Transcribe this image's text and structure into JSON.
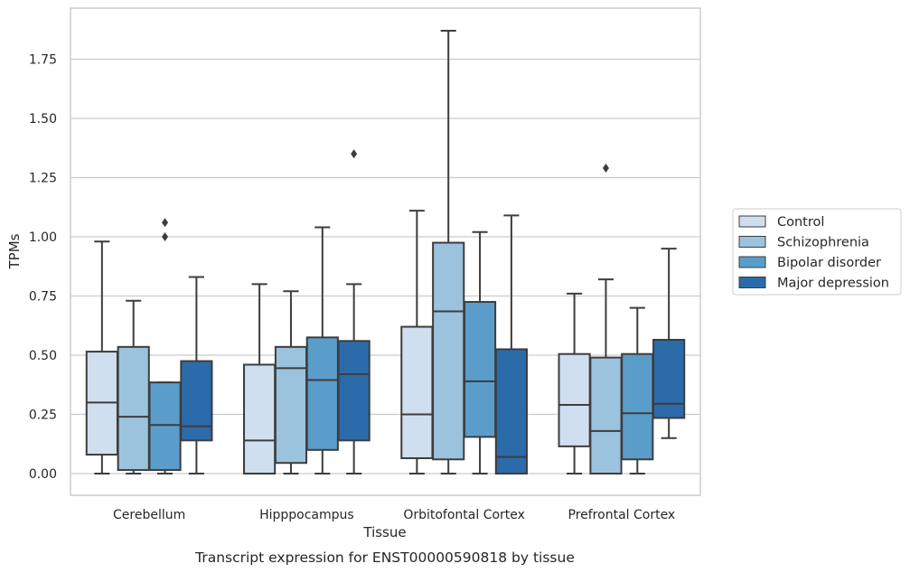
{
  "chart_data": {
    "type": "boxplot",
    "xlabel": "Tissue",
    "ylabel": "TPMs",
    "caption": "Transcript expression for ENST00000590818 by tissue",
    "ylim": [
      -0.09,
      1.97
    ],
    "yticks": [
      "0.00",
      "0.25",
      "0.50",
      "0.75",
      "1.00",
      "1.25",
      "1.50",
      "1.75"
    ],
    "grid": "horizontal",
    "legend_position": "right",
    "categories": [
      "Cerebellum",
      "Hipppocampus",
      "Orbitofontal Cortex",
      "Prefrontal Cortex"
    ],
    "series": [
      {
        "name": "Control",
        "color": "#cfdfef",
        "boxes": [
          {
            "whislo": 0.0,
            "q1": 0.08,
            "med": 0.3,
            "q3": 0.515,
            "whishi": 0.98,
            "fliers": []
          },
          {
            "whislo": 0.0,
            "q1": 0.0,
            "med": 0.14,
            "q3": 0.46,
            "whishi": 0.8,
            "fliers": []
          },
          {
            "whislo": 0.0,
            "q1": 0.065,
            "med": 0.25,
            "q3": 0.62,
            "whishi": 1.11,
            "fliers": []
          },
          {
            "whislo": 0.0,
            "q1": 0.115,
            "med": 0.29,
            "q3": 0.505,
            "whishi": 0.76,
            "fliers": []
          }
        ]
      },
      {
        "name": "Schizophrenia",
        "color": "#9bc3dd",
        "boxes": [
          {
            "whislo": 0.0,
            "q1": 0.015,
            "med": 0.24,
            "q3": 0.535,
            "whishi": 0.73,
            "fliers": []
          },
          {
            "whislo": 0.0,
            "q1": 0.045,
            "med": 0.445,
            "q3": 0.535,
            "whishi": 0.77,
            "fliers": []
          },
          {
            "whislo": 0.0,
            "q1": 0.06,
            "med": 0.685,
            "q3": 0.975,
            "whishi": 1.87,
            "fliers": []
          },
          {
            "whislo": 0.0,
            "q1": 0.0,
            "med": 0.18,
            "q3": 0.49,
            "whishi": 0.82,
            "fliers": [
              1.29
            ]
          }
        ]
      },
      {
        "name": "Bipolar disorder",
        "color": "#5a9dcb",
        "boxes": [
          {
            "whislo": 0.0,
            "q1": 0.015,
            "med": 0.205,
            "q3": 0.385,
            "whishi": 0.385,
            "fliers": [
              1.0,
              1.06
            ]
          },
          {
            "whislo": 0.0,
            "q1": 0.1,
            "med": 0.395,
            "q3": 0.575,
            "whishi": 1.04,
            "fliers": []
          },
          {
            "whislo": 0.0,
            "q1": 0.155,
            "med": 0.39,
            "q3": 0.725,
            "whishi": 1.02,
            "fliers": []
          },
          {
            "whislo": 0.0,
            "q1": 0.06,
            "med": 0.255,
            "q3": 0.505,
            "whishi": 0.7,
            "fliers": []
          }
        ]
      },
      {
        "name": "Major depression",
        "color": "#2c6ba9",
        "boxes": [
          {
            "whislo": 0.0,
            "q1": 0.14,
            "med": 0.2,
            "q3": 0.475,
            "whishi": 0.83,
            "fliers": []
          },
          {
            "whislo": 0.0,
            "q1": 0.14,
            "med": 0.42,
            "q3": 0.56,
            "whishi": 0.8,
            "fliers": [
              1.35
            ]
          },
          {
            "whislo": 0.0,
            "q1": 0.0,
            "med": 0.07,
            "q3": 0.525,
            "whishi": 1.09,
            "fliers": []
          },
          {
            "whislo": 0.15,
            "q1": 0.235,
            "med": 0.295,
            "q3": 0.565,
            "whishi": 0.95,
            "fliers": []
          }
        ]
      }
    ]
  }
}
